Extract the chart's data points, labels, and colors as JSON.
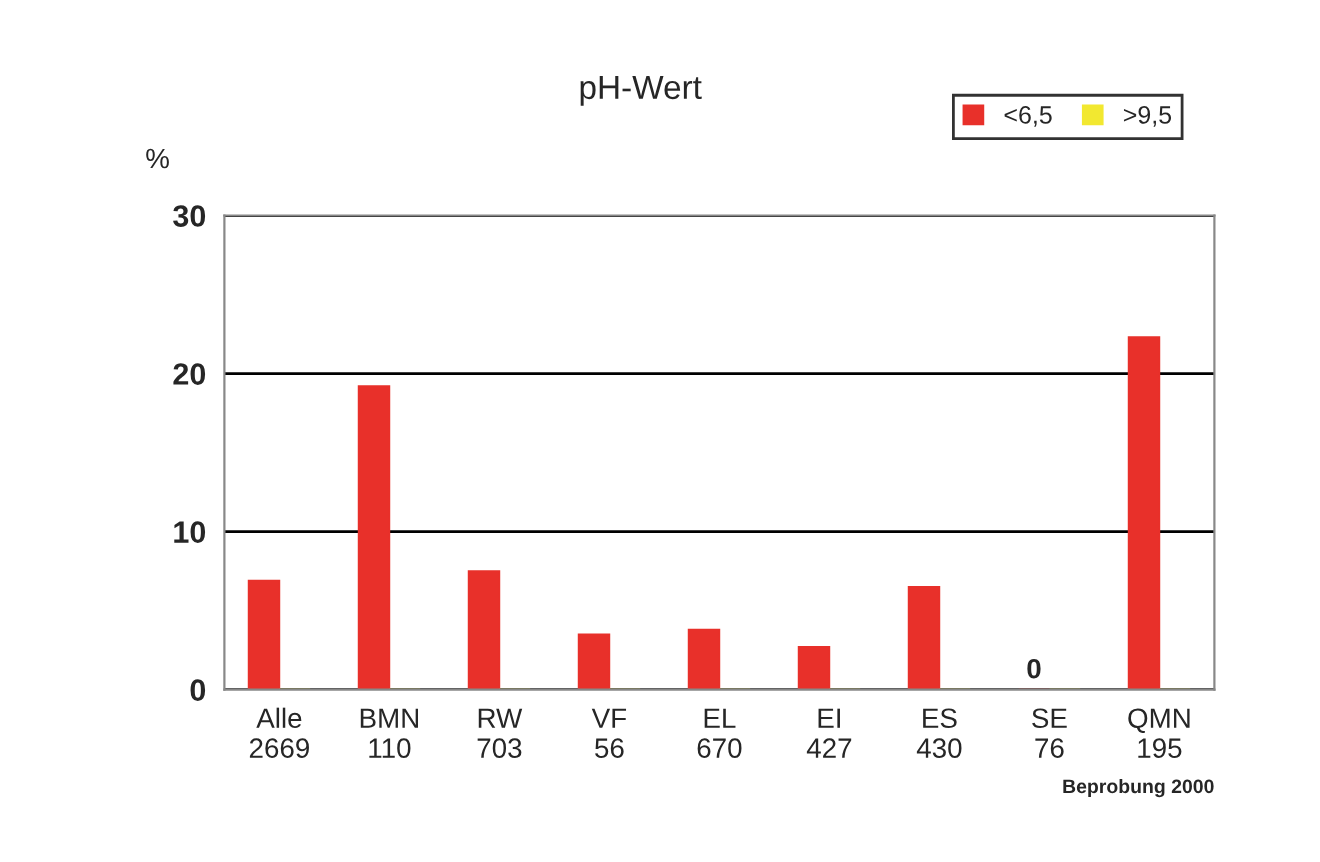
{
  "chart_data": {
    "type": "bar",
    "title": "pH-Wert",
    "ylabel": "%",
    "categories": [
      "Alle\n2669",
      "BMN\n110",
      "RW\n703",
      "VF\n56",
      "EL\n670",
      "EI\n427",
      "ES\n430",
      "SE\n76",
      "QMN\n195"
    ],
    "series": [
      {
        "name": "<6,5",
        "color": "#e8302a",
        "values": [
          6.9,
          19.2,
          7.5,
          3.5,
          3.8,
          2.7,
          6.5,
          0,
          22.3
        ],
        "value_labels": [
          null,
          null,
          null,
          null,
          null,
          null,
          null,
          "0",
          null
        ]
      },
      {
        "name": ">9,5",
        "color": "#f2e830",
        "values": [
          0,
          0,
          0,
          0,
          0,
          0,
          0,
          0,
          0
        ]
      }
    ],
    "ylim": [
      0,
      30
    ],
    "yticks": [
      0,
      10,
      20,
      30
    ],
    "grid": "y",
    "legend": "top right",
    "annotations": [
      "Beprobung 2000"
    ]
  }
}
